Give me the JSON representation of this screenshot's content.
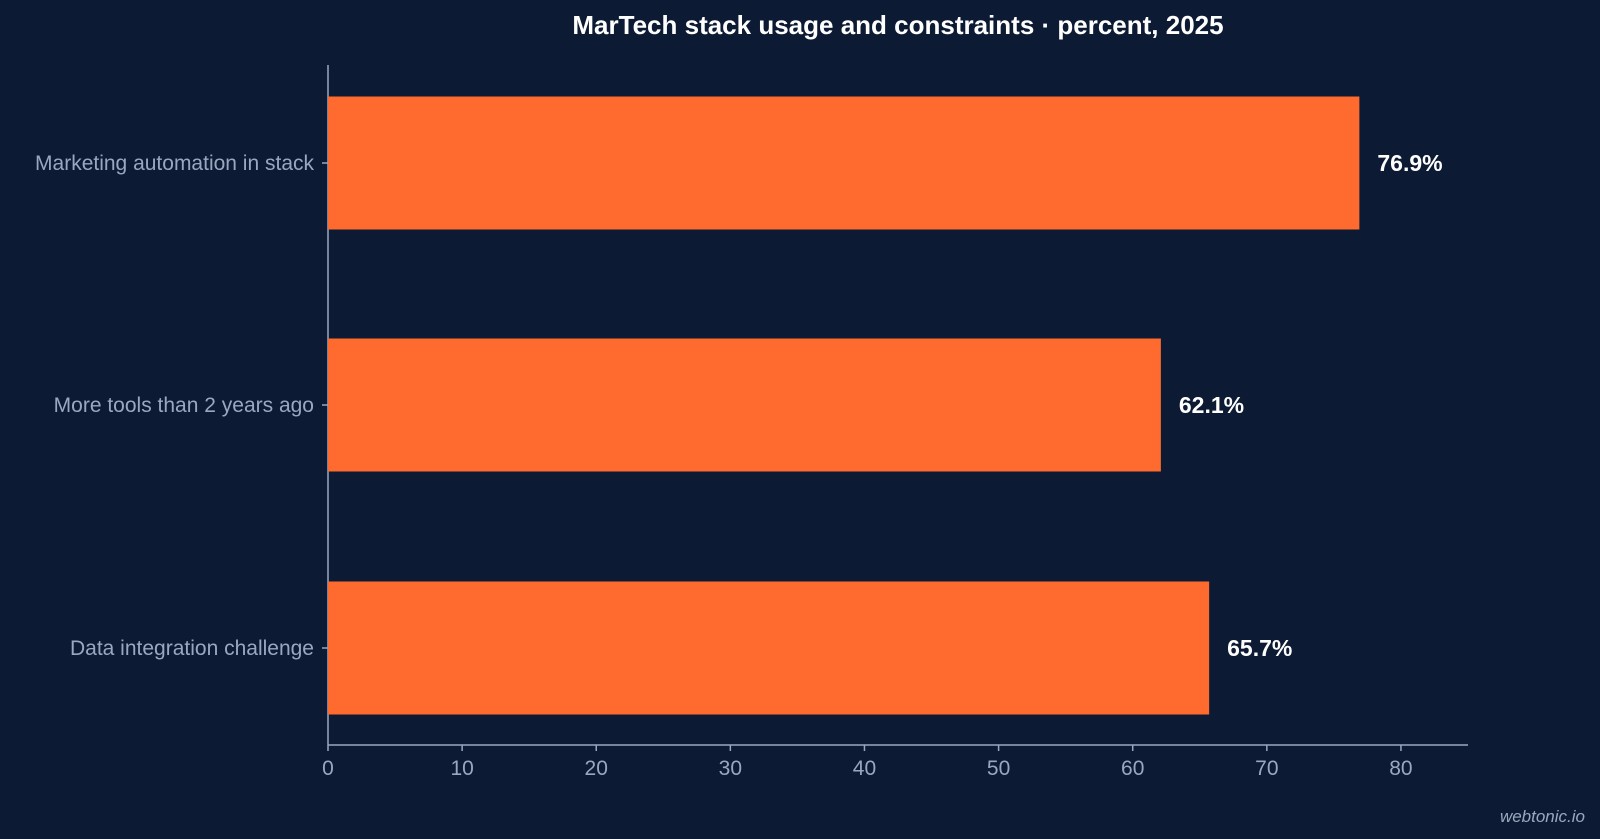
{
  "chart_data": {
    "type": "bar",
    "orientation": "horizontal",
    "title": "MarTech stack usage and constraints · percent, 2025",
    "xlabel": "",
    "ylabel": "",
    "categories": [
      "Marketing automation in stack",
      "More tools than 2 years ago",
      "Data integration challenge"
    ],
    "values": [
      76.9,
      62.1,
      65.7
    ],
    "value_labels": [
      "76.9%",
      "62.1%",
      "65.7%"
    ],
    "xlim": [
      0,
      85
    ],
    "xticks": [
      0,
      10,
      20,
      30,
      40,
      50,
      60,
      70,
      80
    ],
    "grid": false,
    "colors": {
      "background": "#0c1a33",
      "bar": "#ff6b2e",
      "text": "#ffffff",
      "muted": "#9aa8bf"
    }
  },
  "footer": {
    "credit": "webtonic.io"
  }
}
